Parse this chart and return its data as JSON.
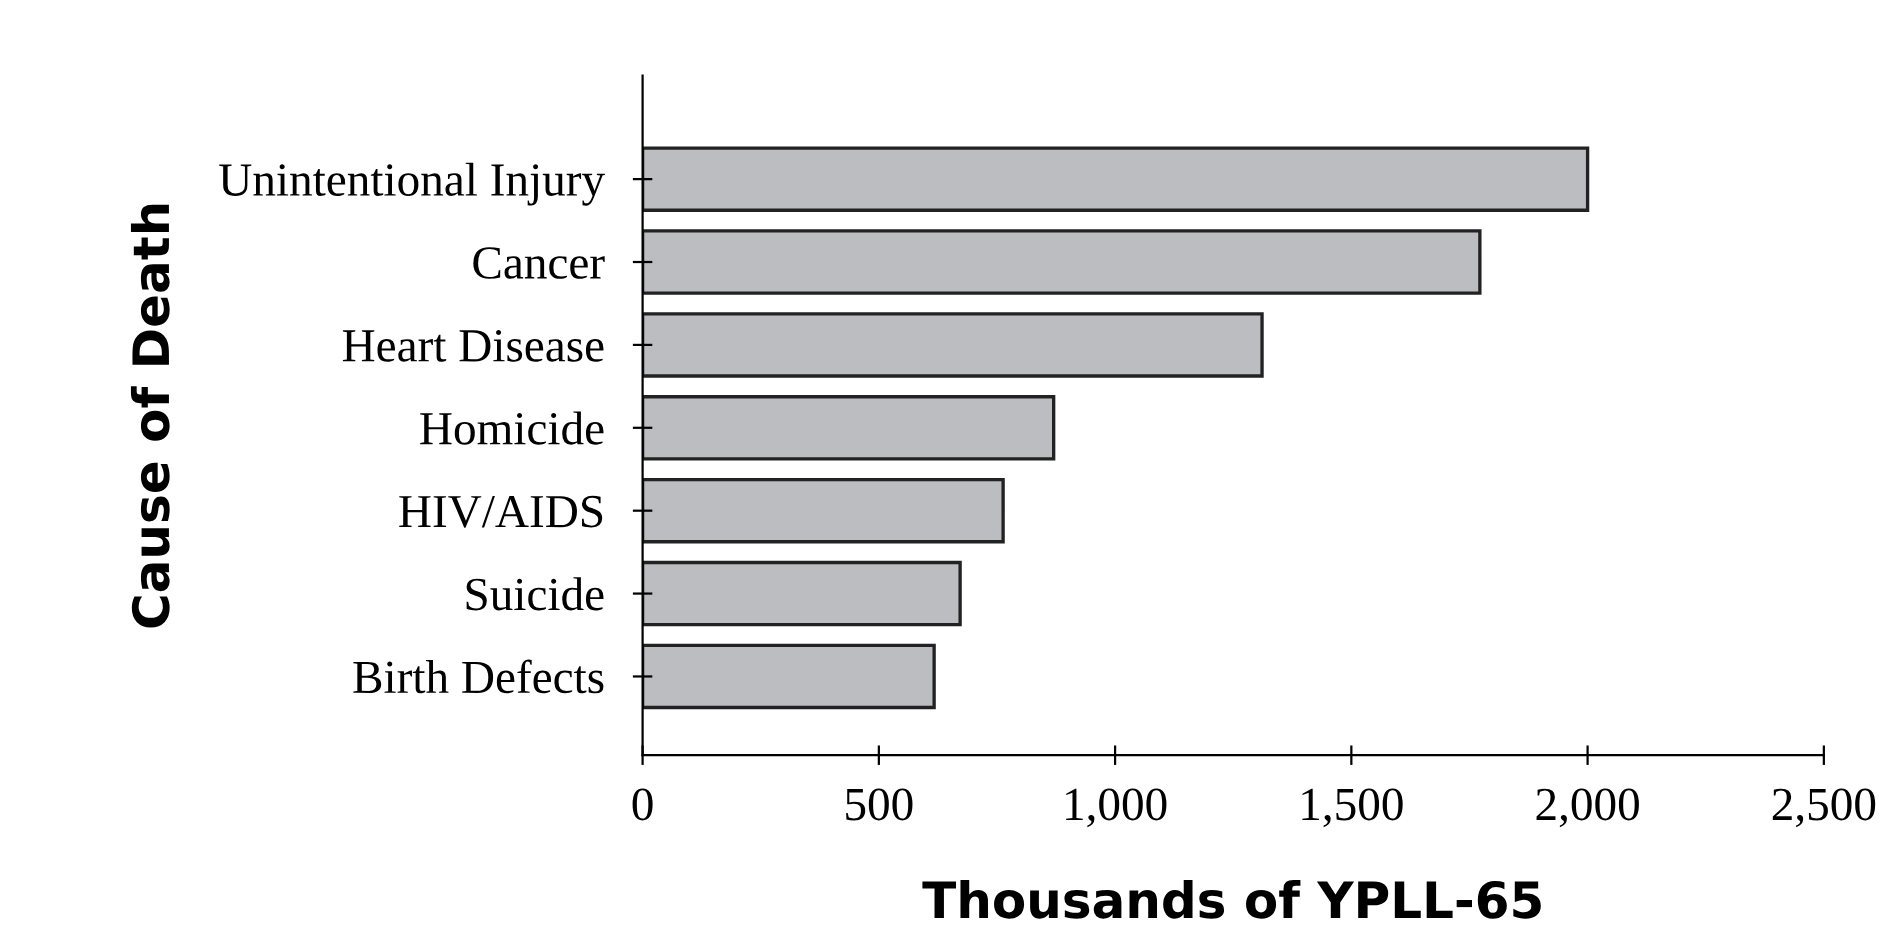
{
  "chart_data": {
    "type": "bar",
    "orientation": "horizontal",
    "categories": [
      "Unintentional Injury",
      "Cancer",
      "Heart Disease",
      "Homicide",
      "HIV/AIDS",
      "Suicide",
      "Birth Defects"
    ],
    "values": [
      2000,
      1772,
      1311,
      870,
      763,
      672,
      617
    ],
    "color": "#bcbdc1",
    "xlim": [
      0,
      2500
    ],
    "xticks": [
      0,
      {
        "value": 500,
        "label": "500"
      },
      {
        "value": 1000,
        "label": "1,000"
      },
      {
        "value": 1500,
        "label": "1,500"
      },
      {
        "value": 2000,
        "label": "2,000"
      },
      {
        "value": 2500,
        "label": "2,500"
      }
    ],
    "xlabel": "Thousands of YPLL-65",
    "ylabel": "Cause of Death",
    "grid": false,
    "legend": false
  }
}
